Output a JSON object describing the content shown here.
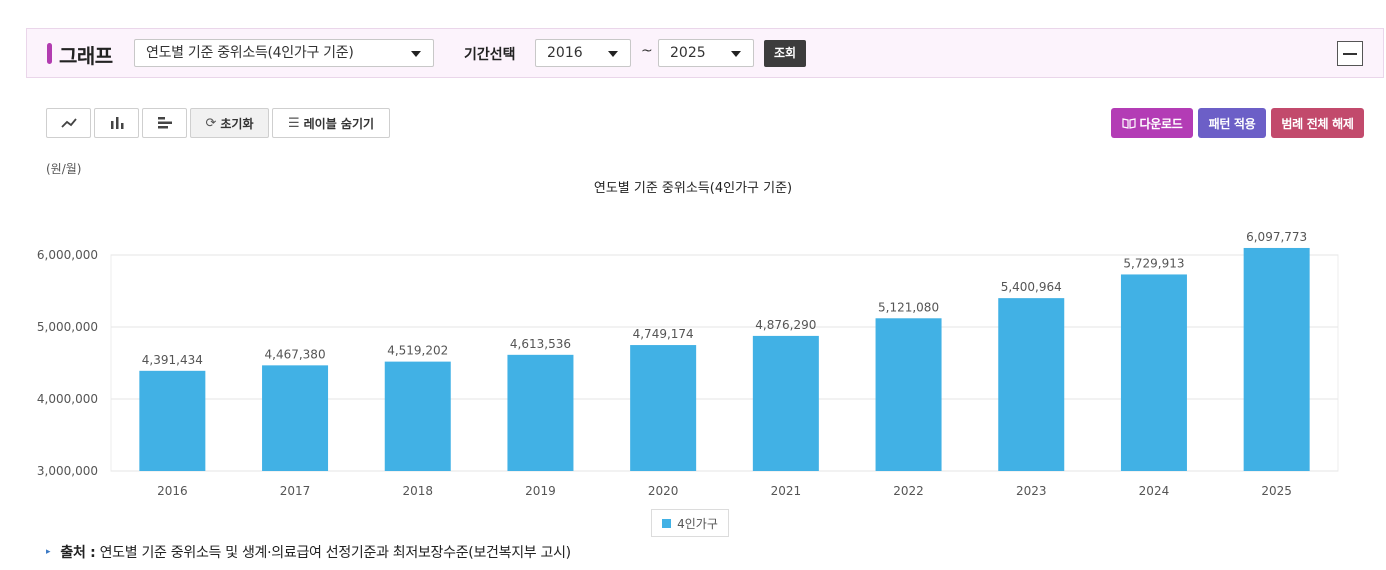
{
  "header": {
    "title": "그래프",
    "indicator_select": "연도별 기준 중위소득(4인가구 기준)",
    "period_label": "기간선택",
    "period_from": "2016",
    "tilde": "~",
    "period_to": "2025",
    "query_label": "조회"
  },
  "toolbar": {
    "reset_label": "초기화",
    "hide_labels_label": "레이블 숨기기",
    "download_label": "다운로드",
    "pattern_label": "패턴 적용",
    "legend_off_label": "범례 전체 해제"
  },
  "colors": {
    "accent": "#b23cb0",
    "bar": "#41b1e5",
    "download": "#b33cb5",
    "pattern": "#6c5fc7",
    "legend_off": "#c24a6c"
  },
  "chart_data": {
    "type": "bar",
    "title": "연도별 기준 중위소득(4인가구 기준)",
    "unit_label": "(원/월)",
    "categories": [
      "2016",
      "2017",
      "2018",
      "2019",
      "2020",
      "2021",
      "2022",
      "2023",
      "2024",
      "2025"
    ],
    "series": [
      {
        "name": "4인가구",
        "values": [
          4391434,
          4467380,
          4519202,
          4613536,
          4749174,
          4876290,
          5121080,
          5400964,
          5729913,
          6097773
        ]
      }
    ],
    "y_ticks": [
      "3,000,000",
      "4,000,000",
      "5,000,000",
      "6,000,000"
    ],
    "ylim": [
      3000000,
      6000000
    ],
    "grid": true,
    "legend_position": "bottom"
  },
  "source": {
    "key": "출처 :",
    "text": "연도별 기준 중위소득 및 생계·의료급여 선정기준과 최저보장수준(보건복지부 고시)"
  }
}
